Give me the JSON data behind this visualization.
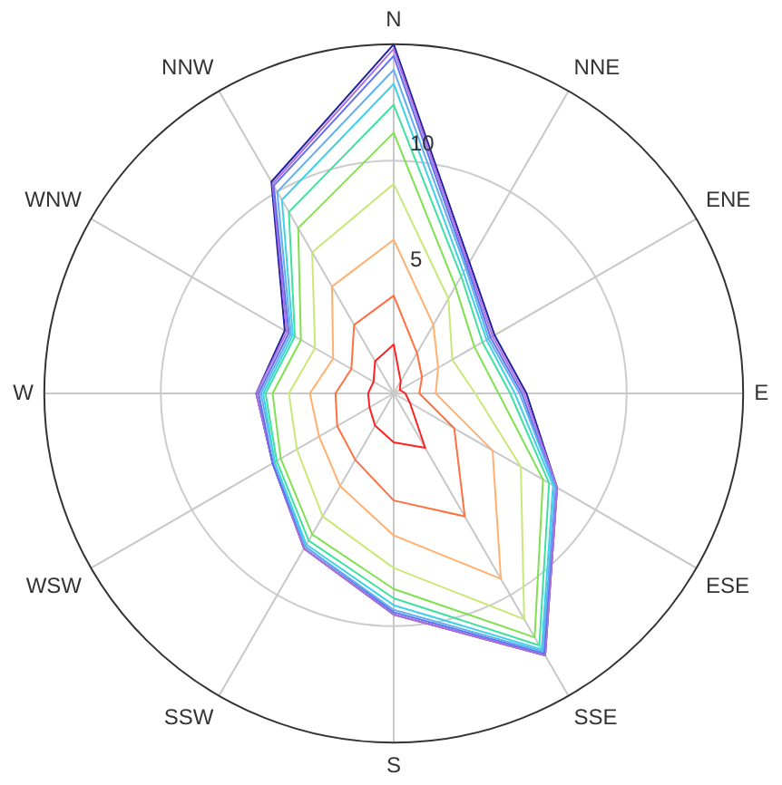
{
  "chart_data": {
    "type": "radar",
    "categories": [
      "N",
      "NNE",
      "ENE",
      "E",
      "ESE",
      "SSE",
      "S",
      "SSW",
      "WSW",
      "W",
      "WNW",
      "NNW"
    ],
    "ylim": [
      0,
      15
    ],
    "yticks": [
      5,
      10
    ],
    "grid": true,
    "legend": false,
    "marker": "none",
    "line_style": "solid",
    "series": [
      {
        "color": "#ff2020",
        "values": [
          2.1,
          0.6,
          0.3,
          0.5,
          0.8,
          2.7,
          2.1,
          1.6,
          1.2,
          1.1,
          1.0,
          1.6
        ]
      },
      {
        "color": "#ff7040",
        "values": [
          4.2,
          2.0,
          1.4,
          1.1,
          3.0,
          6.1,
          4.6,
          3.3,
          2.8,
          2.5,
          2.1,
          3.4
        ]
      },
      {
        "color": "#ffb070",
        "values": [
          6.6,
          3.4,
          2.2,
          1.8,
          4.9,
          9.2,
          6.1,
          4.6,
          3.7,
          3.6,
          3.0,
          5.3
        ]
      },
      {
        "color": "#c8e878",
        "values": [
          9.0,
          4.7,
          2.9,
          3.5,
          6.3,
          11.2,
          7.5,
          6.1,
          4.8,
          4.5,
          3.9,
          7.0
        ]
      },
      {
        "color": "#80e050",
        "values": [
          11.2,
          5.3,
          4.0,
          4.5,
          7.4,
          12.1,
          8.4,
          7.0,
          5.6,
          5.2,
          4.6,
          8.2
        ]
      },
      {
        "color": "#40e0a0",
        "values": [
          12.4,
          5.8,
          4.4,
          5.0,
          7.7,
          12.5,
          8.8,
          7.3,
          5.8,
          5.5,
          4.9,
          9.0
        ]
      },
      {
        "color": "#40d0e8",
        "values": [
          13.3,
          6.0,
          4.6,
          5.2,
          7.9,
          12.7,
          9.1,
          7.5,
          5.9,
          5.6,
          5.0,
          9.6
        ]
      },
      {
        "color": "#60b0f0",
        "values": [
          13.9,
          6.2,
          4.7,
          5.4,
          8.0,
          12.8,
          9.3,
          7.6,
          5.9,
          5.7,
          5.1,
          10.0
        ]
      },
      {
        "color": "#6070f0",
        "values": [
          14.5,
          6.3,
          4.8,
          5.5,
          8.0,
          12.9,
          9.4,
          7.6,
          6.0,
          5.8,
          5.2,
          10.3
        ]
      },
      {
        "color": "#b070e0",
        "values": [
          14.8,
          6.4,
          4.9,
          5.6,
          8.1,
          13.0,
          9.5,
          7.7,
          6.0,
          5.9,
          5.3,
          10.4
        ]
      },
      {
        "color": "#2020a0",
        "values": [
          15.0,
          6.5,
          5.0,
          5.7,
          8.1,
          13.0,
          9.5,
          7.7,
          6.0,
          5.9,
          5.4,
          10.5
        ]
      }
    ]
  }
}
